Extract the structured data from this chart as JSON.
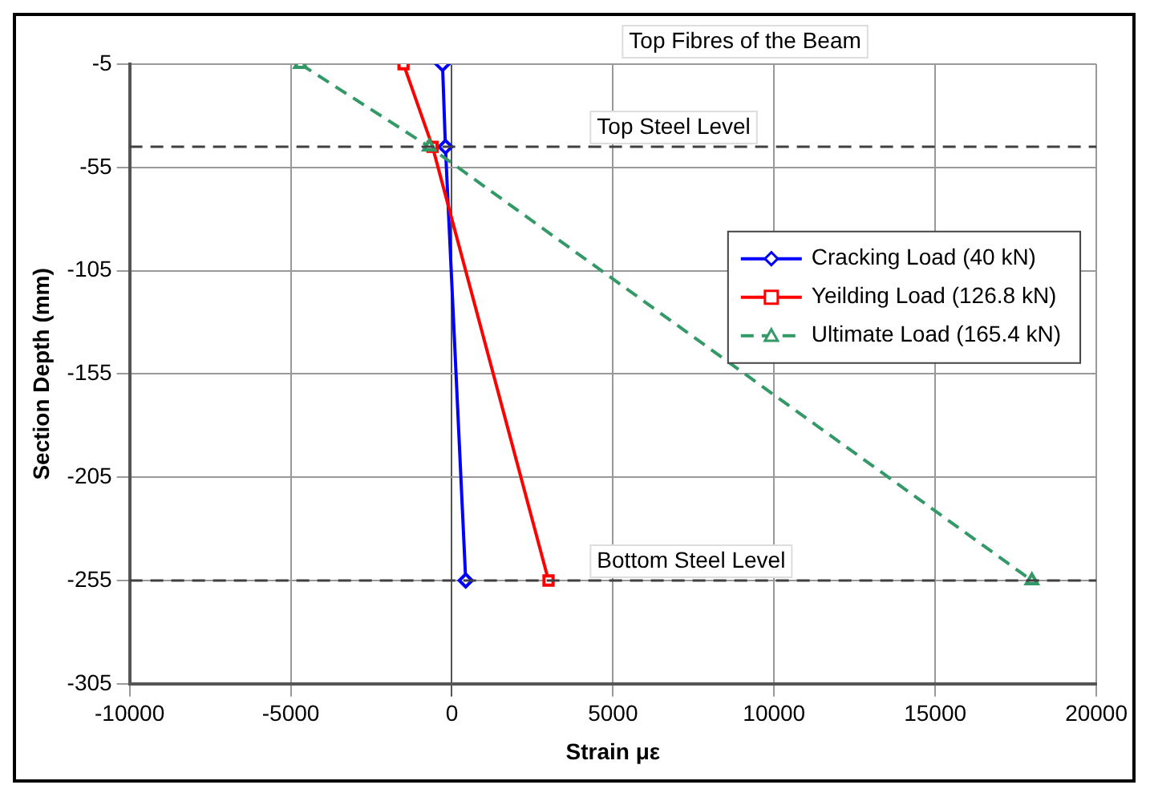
{
  "chart_data": {
    "type": "line",
    "xlabel": "Strain με",
    "ylabel": "Section Depth (mm)",
    "xlim": [
      -10000,
      20000
    ],
    "xticks": [
      -10000,
      -5000,
      0,
      5000,
      10000,
      15000,
      20000
    ],
    "ylim": [
      -305,
      -5
    ],
    "yticks": [
      -5,
      -55,
      -105,
      -155,
      -205,
      -255,
      -305
    ],
    "grid": true,
    "legend": "right",
    "series": [
      {
        "name": "Cracking Load (40 kN)",
        "color": "#0000ff",
        "marker": "diamond",
        "line_style": "solid",
        "x": [
          -290,
          -200,
          430
        ],
        "values": [
          -5,
          -45,
          -255
        ]
      },
      {
        "name": "Yeilding Load (126.8 kN)",
        "color": "#ff0000",
        "marker": "square",
        "line_style": "solid",
        "x": [
          -1500,
          -600,
          3000
        ],
        "values": [
          -5,
          -45,
          -255
        ]
      },
      {
        "name": "Ultimate Load (165.4 kN)",
        "color": "#339966",
        "marker": "triangle",
        "line_style": "dashed",
        "x": [
          -4700,
          -700,
          18000
        ],
        "values": [
          -5,
          -45,
          -255
        ]
      }
    ],
    "ref_lines": [
      {
        "axis": "y",
        "value": -45,
        "label": "Top Steel Level",
        "color": "#404040",
        "line_style": "dashed"
      },
      {
        "axis": "y",
        "value": -255,
        "label": "Bottom Steel Level",
        "color": "#404040",
        "line_style": "dashed"
      }
    ],
    "annotations": [
      "Top Fibres of the Beam"
    ]
  }
}
